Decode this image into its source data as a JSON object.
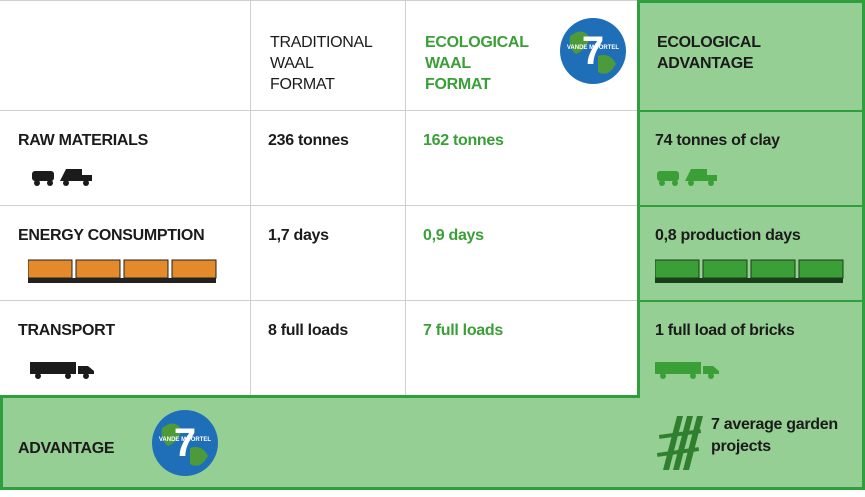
{
  "header": {
    "columns": [
      "TRADITIONAL WAAL FORMAT",
      "ECOLOGICAL WAAL FORMAT",
      "ECOLOGICAL ADVANTAGE"
    ]
  },
  "logo": {
    "number": "7",
    "text": "VANDE MOORTEL"
  },
  "rows": [
    {
      "label": "RAW MATERIALS",
      "traditional": "236 tonnes",
      "ecological": "162 tonnes",
      "advantage": "74 tonnes of clay"
    },
    {
      "label": "ENERGY CONSUMPTION",
      "traditional": "1,7 days",
      "ecological": "0,9 days",
      "advantage": "0,8 production days"
    },
    {
      "label": "TRANSPORT",
      "traditional": "8 full loads",
      "ecological": "7 full loads",
      "advantage": "1 full load of bricks"
    }
  ],
  "summary": {
    "label": "ADVANTAGE",
    "result": "7 average garden projects"
  }
}
